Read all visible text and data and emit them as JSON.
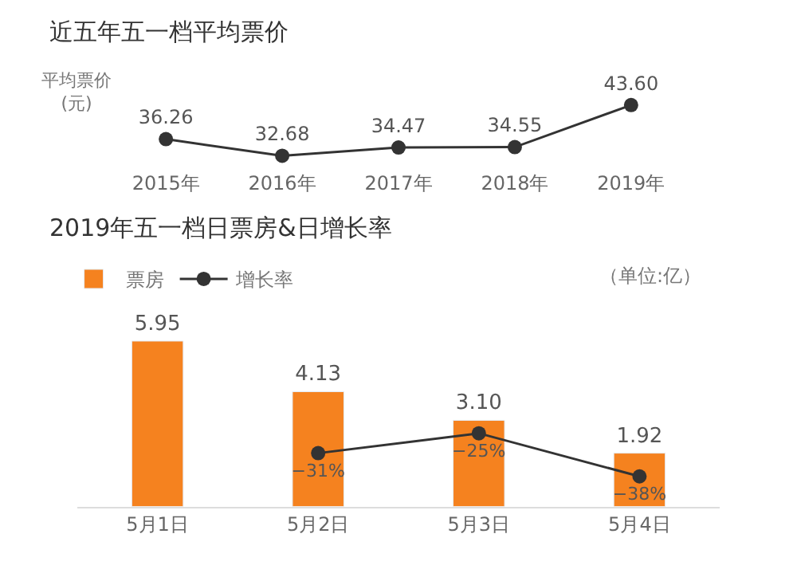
{
  "chart_data": [
    {
      "type": "line",
      "title": "近五年五一档平均票价",
      "ylabel": "平均票价\n(元)",
      "categories": [
        "2015年",
        "2016年",
        "2017年",
        "2018年",
        "2019年"
      ],
      "series": [
        {
          "color": "#333333",
          "values": [
            36.26,
            32.68,
            34.47,
            34.55,
            43.6
          ],
          "value_labels": [
            "36.26",
            "32.68",
            "34.47",
            "34.55",
            "43.60"
          ]
        }
      ],
      "marker": "circle",
      "line_style": "solid",
      "tick_labels": "x"
    },
    {
      "type": "bar",
      "title": "2019年五一档日票房&日增长率",
      "categories": [
        "5月1日",
        "5月2日",
        "5月3日",
        "5月4日"
      ],
      "series": [
        {
          "name": "票房",
          "type": "bar",
          "color": "#f5821f",
          "values": [
            5.95,
            4.13,
            3.1,
            1.92
          ],
          "value_labels": [
            "5.95",
            "4.13",
            "3.10",
            "1.92"
          ]
        },
        {
          "name": "增长率",
          "type": "line",
          "axis": "y2",
          "color": "#333333",
          "values": [
            null,
            -31,
            -25,
            -38
          ],
          "value_labels": [
            null,
            "−31%",
            "−25%",
            "−38%"
          ]
        }
      ],
      "annotations": [
        "（单位:亿）"
      ],
      "marker": "circle",
      "legend": "top left",
      "tick_labels": "x"
    }
  ]
}
